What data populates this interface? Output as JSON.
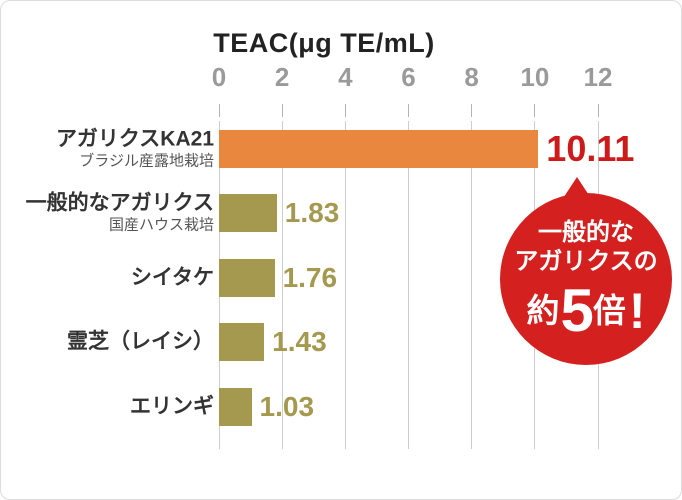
{
  "chart_data": {
    "type": "bar",
    "orientation": "horizontal",
    "title": "TEAC(μg TE/mL)",
    "xlabel": "",
    "ylabel": "",
    "xlim": [
      0,
      12
    ],
    "x_ticks": [
      0,
      2,
      4,
      6,
      8,
      10,
      12
    ],
    "grid": true,
    "bars": [
      {
        "label": "アガリクスKA21",
        "sublabel": "ブラジル産露地栽培",
        "value": 10.11,
        "display_value": "10.11",
        "color_key": "highlight"
      },
      {
        "label": "一般的なアガリクス",
        "sublabel": "国産ハウス栽培",
        "value": 1.83,
        "display_value": "1.83",
        "color_key": "normal"
      },
      {
        "label": "シイタケ",
        "sublabel": "",
        "value": 1.76,
        "display_value": "1.76",
        "color_key": "normal"
      },
      {
        "label": "霊芝（レイシ）",
        "sublabel": "",
        "value": 1.43,
        "display_value": "1.43",
        "color_key": "normal"
      },
      {
        "label": "エリンギ",
        "sublabel": "",
        "value": 1.03,
        "display_value": "1.03",
        "color_key": "normal"
      }
    ]
  },
  "badge": {
    "line1": "一般的な",
    "line2": "アガリクスの",
    "approx": "約",
    "number": "5",
    "unit": "倍",
    "exclamation": "!"
  },
  "colors": {
    "highlight_bar": "#e8873d",
    "normal_bar": "#a5994f",
    "highlight_value_text": "#cd1a1a",
    "normal_value_text": "#a5994f",
    "gridline": "#cdcdcd",
    "tick_mark": "#b3b3b3",
    "axis_text": "#9a9a9a",
    "title_text": "#222222",
    "label_text": "#333333",
    "sublabel_text": "#555555",
    "badge_bg": "#d4201f",
    "badge_text": "#ffffff",
    "background": "#ffffff",
    "frame_border": "#dcdcdc"
  }
}
